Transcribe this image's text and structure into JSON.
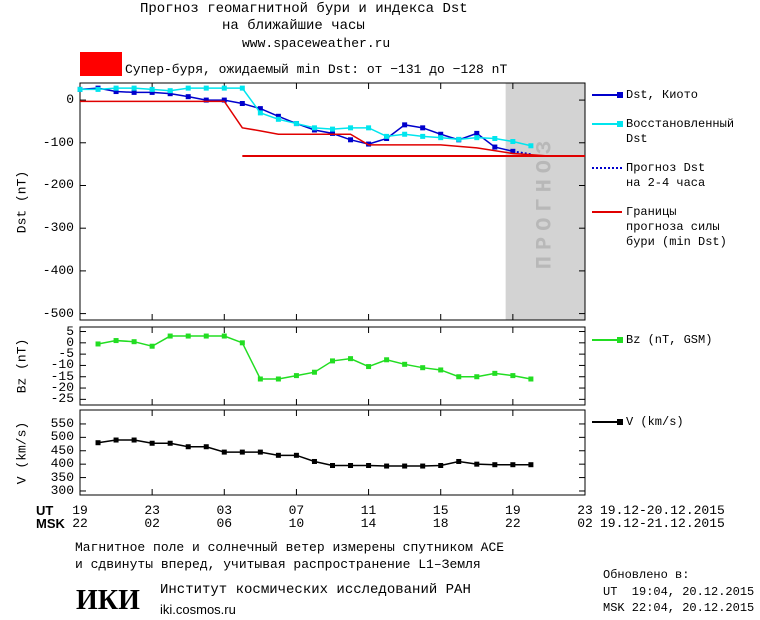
{
  "header": {
    "title": "Прогноз геомагнитной бури и индекса Dst",
    "subtitle": "на ближайшие часы",
    "site": "www.spaceweather.ru",
    "alert": "Супер-буря, ожидаемый min Dst: от −131 до −128 nT",
    "alert_color": "#ff0000"
  },
  "chart_data": [
    {
      "type": "line",
      "y_label": "Dst (nT)",
      "xlim": [
        0,
        28
      ],
      "ylim": [
        -515,
        40
      ],
      "yticks": [
        0,
        -100,
        -200,
        -300,
        -400,
        -500
      ],
      "forecast_region": {
        "x": [
          23.6,
          28
        ],
        "label": "ПРОГНОЗ",
        "color": "#d3d3d3"
      },
      "threshold": {
        "x": [
          9,
          28
        ],
        "values": [
          -131,
          -131
        ],
        "color": "#e00000"
      },
      "series": [
        {
          "name": "Dst, Киото",
          "color": "#0000cc",
          "marker": "square",
          "linestyle": "solid",
          "x": [
            0,
            1,
            2,
            3,
            4,
            5,
            6,
            7,
            8,
            9,
            10,
            11,
            12,
            13,
            14,
            15,
            16,
            17,
            18,
            19,
            20,
            21,
            22,
            23,
            24
          ],
          "values": [
            25,
            28,
            20,
            18,
            18,
            15,
            8,
            0,
            0,
            -8,
            -20,
            -38,
            -55,
            -70,
            -78,
            -93,
            -103,
            -90,
            -58,
            -65,
            -80,
            -93,
            -78,
            -110,
            -120
          ]
        },
        {
          "name": "Восстановленный\nDst",
          "color": "#00e5ee",
          "marker": "square",
          "linestyle": "solid",
          "x": [
            0,
            1,
            2,
            3,
            4,
            5,
            6,
            7,
            8,
            9,
            10,
            11,
            12,
            13,
            14,
            15,
            16,
            17,
            18,
            19,
            20,
            21,
            22,
            23,
            24,
            25
          ],
          "values": [
            25,
            25,
            28,
            28,
            25,
            22,
            28,
            28,
            28,
            28,
            -30,
            -45,
            -55,
            -65,
            -68,
            -65,
            -65,
            -85,
            -80,
            -85,
            -88,
            -92,
            -88,
            -90,
            -97,
            -107
          ]
        },
        {
          "name": "Прогноз Dst\nна 2-4 часа",
          "color": "#0000cc",
          "marker": "none",
          "linestyle": "dotted",
          "x": [
            24,
            25
          ],
          "values": [
            -120,
            -127
          ]
        },
        {
          "name": "Границы\nпрогноза силы\nбури (min Dst)",
          "color": "#e00000",
          "marker": "none",
          "linestyle": "solid",
          "x": [
            0,
            8,
            9,
            10,
            11,
            15,
            16,
            20,
            22,
            24,
            26
          ],
          "values": [
            -3,
            -3,
            -65,
            -72,
            -80,
            -80,
            -105,
            -105,
            -112,
            -125,
            -131
          ]
        }
      ]
    },
    {
      "type": "line",
      "y_label": "Bz (nT)",
      "xlim": [
        0,
        28
      ],
      "ylim": [
        -27.5,
        7
      ],
      "yticks": [
        5,
        0,
        -5,
        -10,
        -15,
        -20,
        -25
      ],
      "series": [
        {
          "name": "Bz (nT, GSM)",
          "color": "#22dd22",
          "marker": "square",
          "linestyle": "solid",
          "x": [
            1,
            2,
            3,
            4,
            5,
            6,
            7,
            8,
            9,
            10,
            11,
            12,
            13,
            14,
            15,
            16,
            17,
            18,
            19,
            20,
            21,
            22,
            23,
            24,
            25
          ],
          "values": [
            -0.5,
            1,
            0.5,
            -1.5,
            3,
            3,
            3,
            3,
            0,
            -16,
            -16,
            -14.5,
            -13,
            -8,
            -7,
            -10.5,
            -7.5,
            -9.5,
            -11,
            -12,
            -15,
            -15,
            -13.5,
            -14.5,
            -16
          ]
        }
      ]
    },
    {
      "type": "line",
      "y_label": "V (km/s)",
      "xlim": [
        0,
        28
      ],
      "ylim": [
        285,
        602
      ],
      "yticks": [
        550,
        500,
        450,
        400,
        350,
        300
      ],
      "series": [
        {
          "name": "V (km/s)",
          "color": "#000000",
          "marker": "square",
          "linestyle": "solid",
          "x": [
            1,
            2,
            3,
            4,
            5,
            6,
            7,
            8,
            9,
            10,
            11,
            12,
            13,
            14,
            15,
            16,
            17,
            18,
            19,
            20,
            21,
            22,
            23,
            24,
            25
          ],
          "values": [
            480,
            490,
            490,
            478,
            478,
            465,
            465,
            445,
            445,
            445,
            433,
            433,
            410,
            395,
            395,
            395,
            393,
            393,
            393,
            395,
            410,
            400,
            398,
            398,
            398
          ]
        }
      ]
    }
  ],
  "time_axis": {
    "ut_label": "UT",
    "msk_label": "MSK",
    "ut_range": "19.12-20.12.2015",
    "msk_range": "19.12-21.12.2015",
    "ut_ticks": [
      {
        "value": 0,
        "label": "19"
      },
      {
        "value": 4,
        "label": "23"
      },
      {
        "value": 8,
        "label": "03"
      },
      {
        "value": 12,
        "label": "07"
      },
      {
        "value": 16,
        "label": "11"
      },
      {
        "value": 20,
        "label": "15"
      },
      {
        "value": 24,
        "label": "19"
      },
      {
        "value": 28,
        "label": "23"
      }
    ],
    "msk_ticks": [
      {
        "value": 0,
        "label": "22"
      },
      {
        "value": 4,
        "label": "02"
      },
      {
        "value": 8,
        "label": "06"
      },
      {
        "value": 12,
        "label": "10"
      },
      {
        "value": 16,
        "label": "14"
      },
      {
        "value": 20,
        "label": "18"
      },
      {
        "value": 24,
        "label": "22"
      },
      {
        "value": 28,
        "label": "02"
      }
    ]
  },
  "footer": {
    "note_1": "Магнитное поле и солнечный ветер измерены спутником ACE",
    "note_2": "и сдвинуты вперед, учитывая распространение L1–Земля",
    "logo": "ИКИ",
    "institute": "Институт космических исследований РАН",
    "url": "iki.cosmos.ru",
    "updated": "Обновлено в:",
    "updated_ut": "UT  19:04, 20.12.2015",
    "updated_msk": "MSK 22:04, 20.12.2015"
  }
}
